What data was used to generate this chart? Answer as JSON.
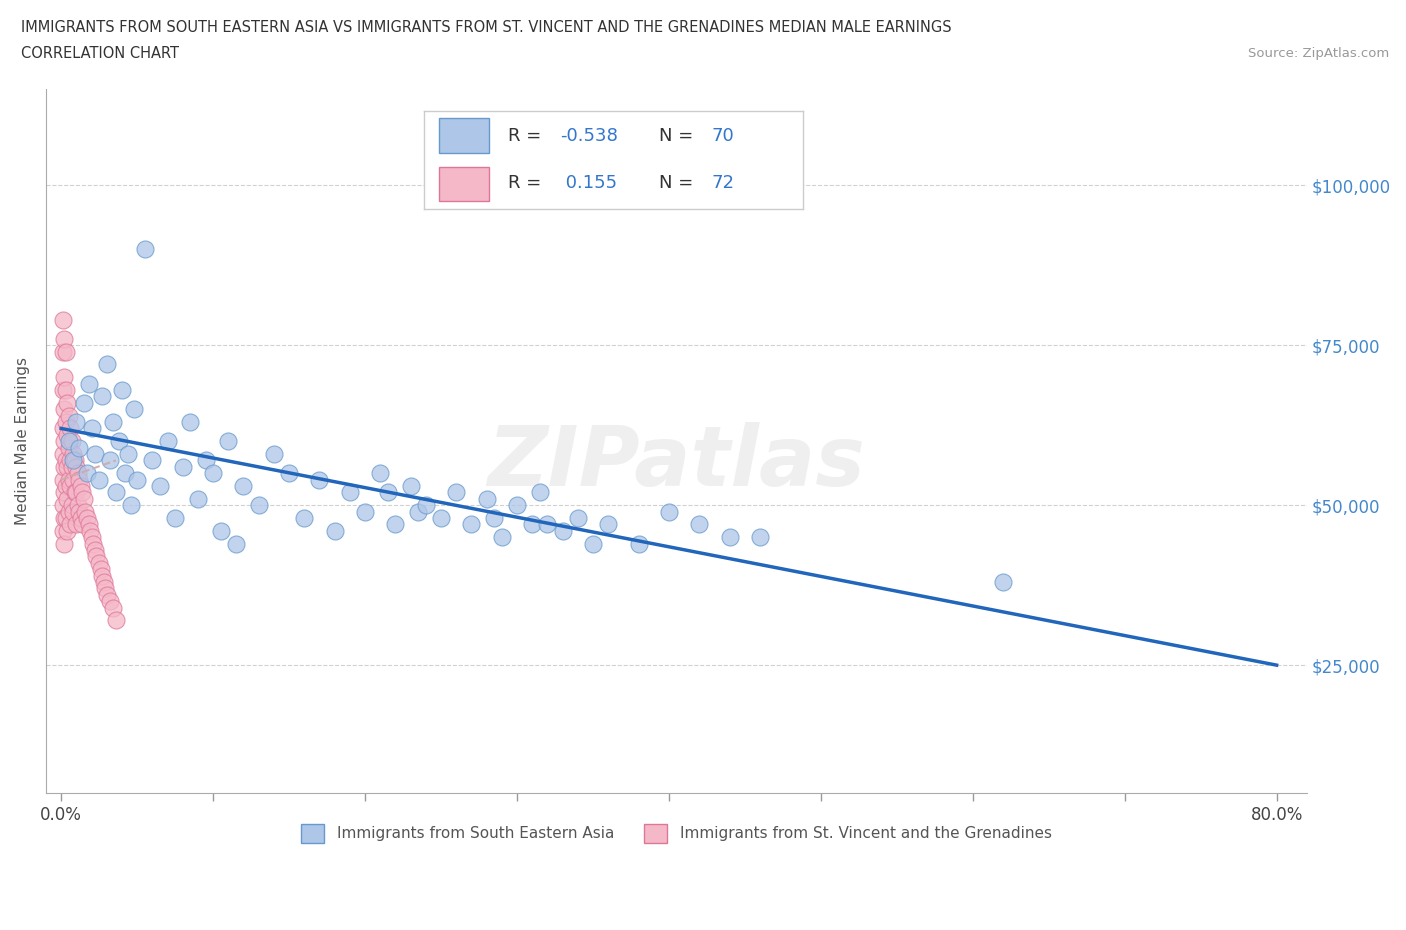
{
  "title_line1": "IMMIGRANTS FROM SOUTH EASTERN ASIA VS IMMIGRANTS FROM ST. VINCENT AND THE GRENADINES MEDIAN MALE EARNINGS",
  "title_line2": "CORRELATION CHART",
  "source_text": "Source: ZipAtlas.com",
  "ylabel": "Median Male Earnings",
  "xlim": [
    -0.01,
    0.82
  ],
  "ylim": [
    5000,
    115000
  ],
  "yticks": [
    25000,
    50000,
    75000,
    100000
  ],
  "xticks": [
    0.0,
    0.1,
    0.2,
    0.3,
    0.4,
    0.5,
    0.6,
    0.7,
    0.8
  ],
  "xtick_labels_show": [
    "0.0%",
    "",
    "",
    "",
    "",
    "",
    "",
    "",
    "80.0%"
  ],
  "ytick_labels_right": [
    "$25,000",
    "$50,000",
    "$75,000",
    "$100,000"
  ],
  "blue_color": "#aec6e8",
  "blue_edge_color": "#6699cc",
  "pink_color": "#f5b8c8",
  "pink_edge_color": "#dd7799",
  "trend_blue_color": "#2266bb",
  "trend_pink_color": "#ccaaaa",
  "R_blue": -0.538,
  "N_blue": 70,
  "R_pink": 0.155,
  "N_pink": 72,
  "blue_x": [
    0.005,
    0.008,
    0.01,
    0.012,
    0.015,
    0.017,
    0.018,
    0.02,
    0.022,
    0.025,
    0.027,
    0.03,
    0.032,
    0.034,
    0.036,
    0.038,
    0.04,
    0.042,
    0.044,
    0.046,
    0.048,
    0.05,
    0.055,
    0.06,
    0.065,
    0.07,
    0.075,
    0.08,
    0.085,
    0.09,
    0.095,
    0.1,
    0.105,
    0.11,
    0.115,
    0.12,
    0.13,
    0.14,
    0.15,
    0.16,
    0.17,
    0.18,
    0.19,
    0.2,
    0.21,
    0.215,
    0.22,
    0.23,
    0.235,
    0.24,
    0.25,
    0.26,
    0.27,
    0.28,
    0.285,
    0.29,
    0.3,
    0.31,
    0.315,
    0.32,
    0.33,
    0.34,
    0.35,
    0.36,
    0.38,
    0.4,
    0.42,
    0.44,
    0.46,
    0.62
  ],
  "blue_y": [
    60000,
    57000,
    63000,
    59000,
    66000,
    55000,
    69000,
    62000,
    58000,
    54000,
    67000,
    72000,
    57000,
    63000,
    52000,
    60000,
    68000,
    55000,
    58000,
    50000,
    65000,
    54000,
    90000,
    57000,
    53000,
    60000,
    48000,
    56000,
    63000,
    51000,
    57000,
    55000,
    46000,
    60000,
    44000,
    53000,
    50000,
    58000,
    55000,
    48000,
    54000,
    46000,
    52000,
    49000,
    55000,
    52000,
    47000,
    53000,
    49000,
    50000,
    48000,
    52000,
    47000,
    51000,
    48000,
    45000,
    50000,
    47000,
    52000,
    47000,
    46000,
    48000,
    44000,
    47000,
    44000,
    49000,
    47000,
    45000,
    45000,
    38000
  ],
  "pink_x": [
    0.001,
    0.001,
    0.001,
    0.001,
    0.001,
    0.001,
    0.001,
    0.001,
    0.002,
    0.002,
    0.002,
    0.002,
    0.002,
    0.002,
    0.002,
    0.002,
    0.003,
    0.003,
    0.003,
    0.003,
    0.003,
    0.003,
    0.004,
    0.004,
    0.004,
    0.004,
    0.004,
    0.005,
    0.005,
    0.005,
    0.005,
    0.006,
    0.006,
    0.006,
    0.006,
    0.007,
    0.007,
    0.007,
    0.008,
    0.008,
    0.008,
    0.009,
    0.009,
    0.01,
    0.01,
    0.01,
    0.011,
    0.011,
    0.012,
    0.012,
    0.013,
    0.013,
    0.014,
    0.014,
    0.015,
    0.016,
    0.017,
    0.018,
    0.019,
    0.02,
    0.021,
    0.022,
    0.023,
    0.025,
    0.026,
    0.027,
    0.028,
    0.029,
    0.03,
    0.032,
    0.034,
    0.036
  ],
  "pink_y": [
    79000,
    74000,
    68000,
    62000,
    58000,
    54000,
    50000,
    46000,
    76000,
    70000,
    65000,
    60000,
    56000,
    52000,
    48000,
    44000,
    74000,
    68000,
    63000,
    57000,
    53000,
    48000,
    66000,
    61000,
    56000,
    51000,
    46000,
    64000,
    59000,
    54000,
    49000,
    62000,
    57000,
    53000,
    47000,
    60000,
    56000,
    50000,
    58000,
    54000,
    49000,
    57000,
    52000,
    56000,
    52000,
    47000,
    55000,
    50000,
    54000,
    49000,
    53000,
    48000,
    52000,
    47000,
    51000,
    49000,
    48000,
    47000,
    46000,
    45000,
    44000,
    43000,
    42000,
    41000,
    40000,
    39000,
    38000,
    37000,
    36000,
    35000,
    34000,
    32000
  ]
}
